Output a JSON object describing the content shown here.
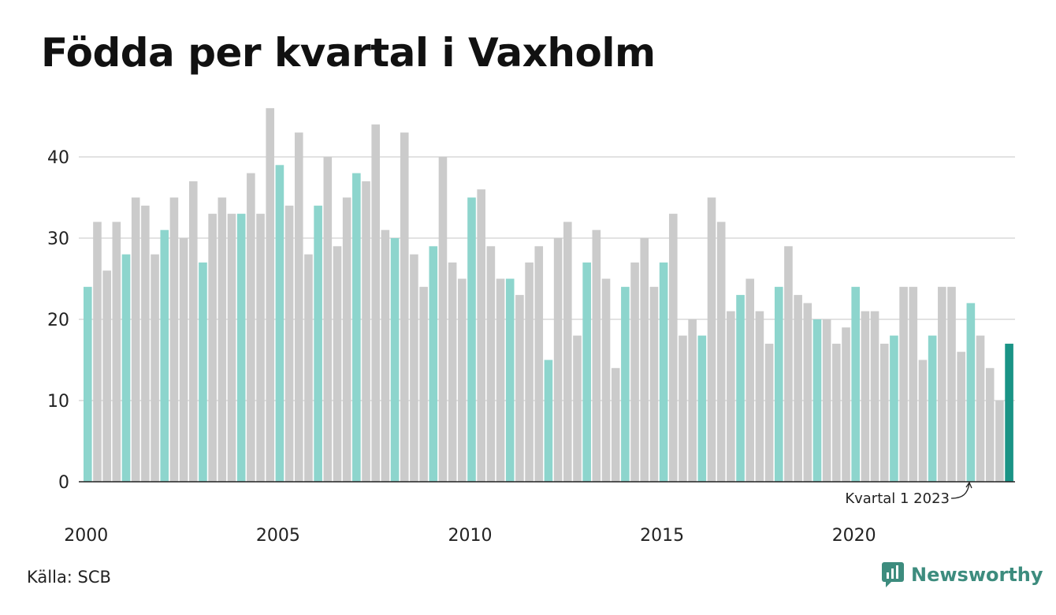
{
  "title": "Födda per kvartal i Vaxholm",
  "source": "Källa: SCB",
  "brand": "Newsworthy",
  "colors": {
    "q1": "#8dd5cd",
    "other": "#cbcbcb",
    "latest": "#1a9486",
    "grid": "#e2e2e2",
    "axis": "#222222"
  },
  "chart_data": {
    "type": "bar",
    "title": "Födda per kvartal i Vaxholm",
    "xlabel": "",
    "ylabel": "",
    "ylim": [
      0,
      47
    ],
    "yticks": [
      0,
      10,
      20,
      30,
      40
    ],
    "xticks": [
      "2000",
      "2005",
      "2010",
      "2015",
      "2020"
    ],
    "grid": true,
    "legend": "none",
    "start_year": 2000,
    "annotation": "Kvartal 1 2023",
    "values": [
      24,
      32,
      26,
      32,
      28,
      35,
      34,
      28,
      31,
      35,
      30,
      37,
      27,
      33,
      35,
      33,
      33,
      38,
      33,
      46,
      39,
      34,
      43,
      28,
      34,
      40,
      29,
      35,
      38,
      37,
      44,
      31,
      30,
      43,
      28,
      24,
      29,
      40,
      27,
      25,
      35,
      36,
      29,
      25,
      25,
      23,
      27,
      29,
      15,
      30,
      32,
      18,
      27,
      31,
      25,
      14,
      24,
      27,
      30,
      24,
      27,
      33,
      18,
      20,
      18,
      35,
      32,
      21,
      23,
      25,
      21,
      17,
      24,
      29,
      23,
      22,
      20,
      20,
      17,
      19,
      24,
      21,
      21,
      17,
      18,
      24,
      24,
      15,
      18,
      24,
      24,
      16,
      22,
      18,
      14,
      10,
      17
    ]
  }
}
